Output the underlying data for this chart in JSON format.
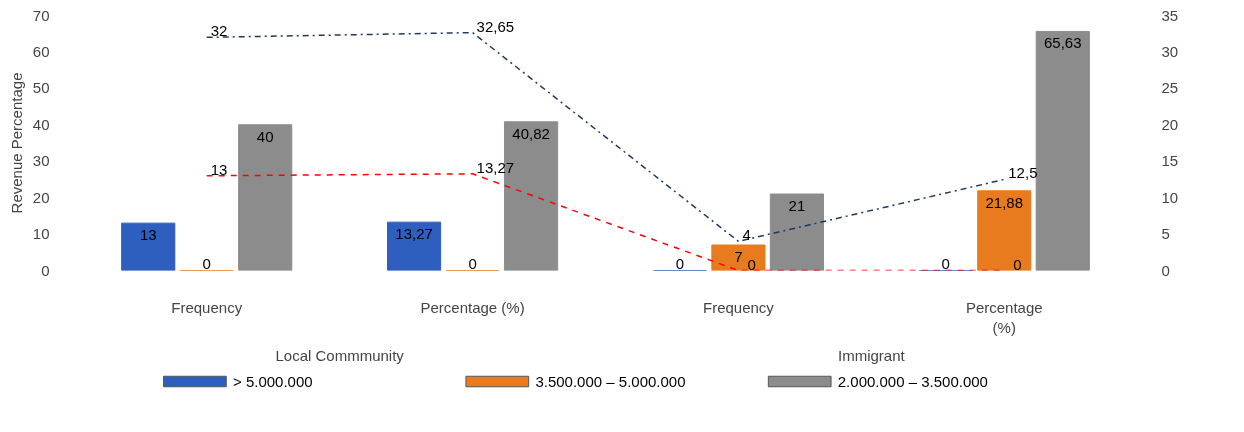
{
  "chart_data": {
    "type": "bar",
    "ylabel": "Revenue Percentage",
    "categories": [
      "Frequency",
      "Percentage (%)",
      "Frequency",
      "Percentage\n(%)"
    ],
    "annotations": [
      "Local Commmunity",
      "Immigrant"
    ],
    "series": [
      {
        "name": "> 5.000.000",
        "color": "#2e5fbf",
        "values": [
          13,
          13.27,
          0,
          0
        ],
        "value_labels": [
          "13",
          "13,27",
          "0",
          "0"
        ]
      },
      {
        "name": "3.500.000 – 5.000.000",
        "color": "#e87b1e",
        "values": [
          0,
          0,
          7,
          21.88
        ],
        "value_labels": [
          "0",
          "0",
          "7",
          "21,88"
        ]
      },
      {
        "name": "2.000.000 – 3.500.000",
        "color": "#8c8c8c",
        "values": [
          40,
          40.82,
          21,
          65.63
        ],
        "value_labels": [
          "40",
          "40,82",
          "21",
          "65,63"
        ]
      },
      {
        "type": "line",
        "axis": "y2",
        "color": "#ff0000",
        "line_style": "dashed",
        "values": [
          13,
          13.27,
          0,
          0
        ],
        "value_labels": [
          "13",
          "13,27",
          "0",
          "0"
        ]
      },
      {
        "type": "line",
        "axis": "y2",
        "color": "#1f3864",
        "line_style": "dashdot",
        "values": [
          32,
          32.65,
          4,
          12.5
        ],
        "value_labels": [
          "32",
          "32,65",
          "4",
          "12,5"
        ]
      }
    ],
    "ylim": [
      0,
      70
    ],
    "yticks": [
      0,
      10,
      20,
      30,
      40,
      50,
      60,
      70
    ],
    "y2lim": [
      0,
      35
    ],
    "y2ticks": [
      0,
      5,
      10,
      15,
      20,
      25,
      30,
      35
    ],
    "grid": false,
    "legend": "bottom"
  }
}
